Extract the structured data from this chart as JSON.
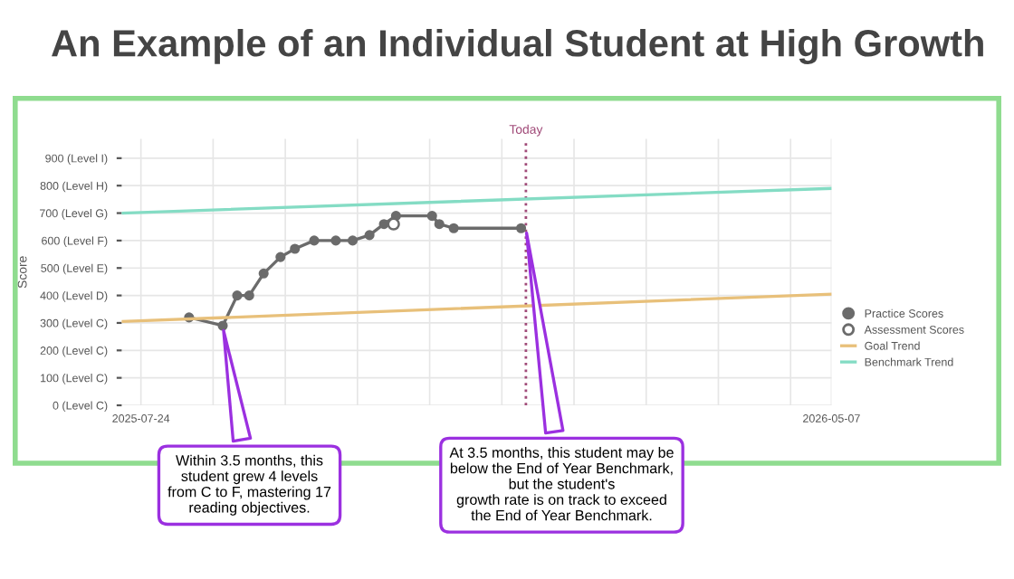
{
  "chart_data": {
    "type": "line",
    "title": "An Example of an Individual Student at High Growth",
    "ylabel": "Score",
    "series": [
      {
        "name": "Practice Scores",
        "color": "#6b6b6b",
        "marker": "circle",
        "x": [
          "2025-08-13",
          "2025-08-27",
          "2025-09-02",
          "2025-09-07",
          "2025-09-13",
          "2025-09-20",
          "2025-09-26",
          "2025-10-04",
          "2025-10-13",
          "2025-10-20",
          "2025-10-27",
          "2025-11-02",
          "2025-11-07",
          "2025-11-22",
          "2025-11-25",
          "2025-12-01",
          "2025-12-29"
        ],
        "values": [
          320,
          290,
          400,
          400,
          480,
          540,
          570,
          600,
          600,
          600,
          620,
          660,
          690,
          690,
          660,
          645,
          645
        ]
      },
      {
        "name": "Assessment Scores",
        "type": "scatter",
        "color": "#6b6b6b",
        "x": [
          "2025-11-06"
        ],
        "values": [
          660
        ]
      },
      {
        "name": "Goal Trend",
        "color": "#e8c07a",
        "marker": "none",
        "x": [
          "2025-07-16",
          "2026-05-07"
        ],
        "values": [
          305,
          405
        ]
      },
      {
        "name": "Benchmark Trend",
        "color": "#84dcc4",
        "marker": "none",
        "x": [
          "2025-07-16",
          "2026-05-07"
        ],
        "values": [
          700,
          790
        ]
      }
    ],
    "xlim": [
      "2025-07-16",
      "2026-05-07"
    ],
    "xticks": [
      {
        "value": "2025-07-24",
        "label": "2025-07-24"
      },
      {
        "value": "2025-08-23",
        "label": null
      },
      {
        "value": "2025-09-22",
        "label": null
      },
      {
        "value": "2025-10-22",
        "label": null
      },
      {
        "value": "2025-11-21",
        "label": null
      },
      {
        "value": "2025-12-21",
        "label": null
      },
      {
        "value": "2026-01-20",
        "label": null
      },
      {
        "value": "2026-02-19",
        "label": null
      },
      {
        "value": "2026-03-21",
        "label": null
      },
      {
        "value": "2026-04-20",
        "label": null
      },
      {
        "value": "2026-05-07",
        "label": "2026-05-07"
      }
    ],
    "ylim": [
      0,
      970
    ],
    "yticks": [
      {
        "value": 0,
        "label": "0 (Level C)"
      },
      {
        "value": 100,
        "label": "100 (Level C)"
      },
      {
        "value": 200,
        "label": "200 (Level C)"
      },
      {
        "value": 300,
        "label": "300 (Level C)"
      },
      {
        "value": 400,
        "label": "400 (Level D)"
      },
      {
        "value": 500,
        "label": "500 (Level E)"
      },
      {
        "value": 600,
        "label": "600 (Level F)"
      },
      {
        "value": 700,
        "label": "700 (Level G)"
      },
      {
        "value": 800,
        "label": "800 (Level H)"
      },
      {
        "value": 900,
        "label": "900 (Level I)"
      }
    ],
    "ref_lines": [
      {
        "axis": "x",
        "value": "2025-12-31",
        "label": "Today",
        "color": "#a04a78",
        "line_style": "dotted"
      }
    ],
    "annotations": [
      {
        "text": "Within 3.5 months, this\nstudent grew 4 levels\nfrom C to F, mastering 17\nreading objectives.",
        "x": "2025-08-27",
        "y": 290
      },
      {
        "text": "At 3.5 months, this student may be\nbelow the End of Year Benchmark,\nbut the student's\ngrowth rate is on track to exceed\nthe End of Year Benchmark.",
        "x": "2025-12-31",
        "y": 645
      }
    ],
    "grid": true,
    "legend": "right"
  }
}
